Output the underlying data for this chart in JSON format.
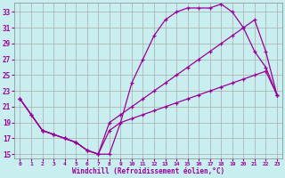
{
  "background_color": "#c8eef0",
  "grid_color": "#aaaaaa",
  "line_color": "#990099",
  "xlabel": "Windchill (Refroidissement éolien,°C)",
  "x_ticks": [
    0,
    1,
    2,
    3,
    4,
    5,
    6,
    7,
    8,
    9,
    10,
    11,
    12,
    13,
    14,
    15,
    16,
    17,
    18,
    19,
    20,
    21,
    22,
    23
  ],
  "y_ticks": [
    15,
    17,
    19,
    21,
    23,
    25,
    27,
    29,
    31,
    33
  ],
  "x_min": -0.5,
  "x_max": 23.5,
  "y_min": 14.5,
  "y_max": 34.2,
  "line1_x": [
    0,
    1,
    2,
    3,
    4,
    5,
    6,
    7,
    8,
    9,
    10,
    11,
    12,
    13,
    14,
    15,
    16,
    17,
    18,
    19,
    20,
    21,
    22,
    23
  ],
  "line1_y": [
    22,
    20,
    18,
    17.5,
    17,
    16.5,
    15.5,
    15,
    15,
    19,
    24,
    27,
    30,
    32,
    33,
    33.5,
    33.5,
    33.5,
    34,
    33,
    31,
    28,
    26,
    22.5
  ],
  "line2_x": [
    0,
    1,
    2,
    3,
    4,
    5,
    6,
    7,
    8,
    9,
    10,
    11,
    12,
    13,
    14,
    15,
    16,
    17,
    18,
    19,
    20,
    21,
    22,
    23
  ],
  "line2_y": [
    22,
    20,
    18,
    17.5,
    17,
    16.5,
    15.5,
    15,
    19,
    20,
    21,
    22,
    23,
    24,
    25,
    26,
    27,
    28,
    29,
    30,
    31,
    32,
    28,
    22.5
  ],
  "line3_x": [
    0,
    2,
    3,
    4,
    5,
    6,
    7,
    8,
    9,
    10,
    11,
    12,
    13,
    14,
    15,
    16,
    17,
    18,
    19,
    20,
    21,
    22,
    23
  ],
  "line3_y": [
    22,
    18,
    17.5,
    17,
    16.5,
    15.5,
    15,
    18,
    19,
    19.5,
    20,
    20.5,
    21,
    21.5,
    22,
    22.5,
    23,
    23.5,
    24,
    24.5,
    25,
    25.5,
    22.5
  ]
}
